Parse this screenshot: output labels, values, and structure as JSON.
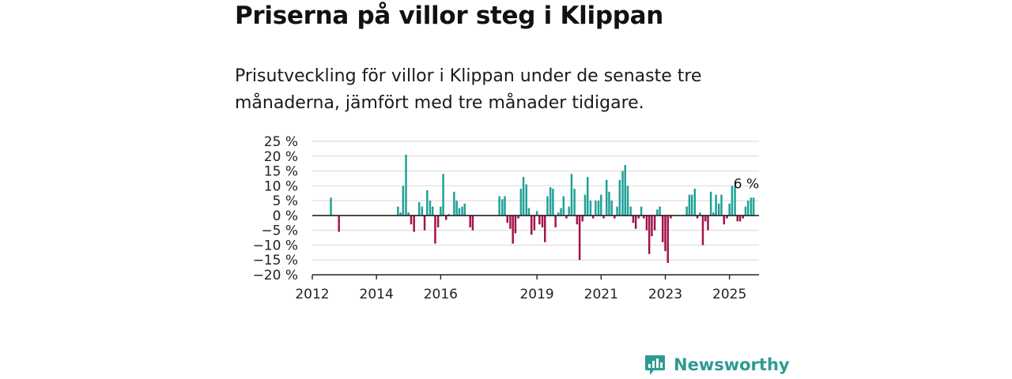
{
  "header": {
    "title": "Priserna på villor steg i Klippan",
    "subtitle": "Prisutveckling för villor i Klippan under de senaste tre månaderna, jämfört med tre månader tidigare."
  },
  "brand": {
    "name": "Newsworthy",
    "icon": "newsworthy-logo-icon",
    "color": "#2c9c92"
  },
  "colors": {
    "positive": "#1ea197",
    "negative": "#a3124a",
    "grid": "#dddddd",
    "axis": "#222222"
  },
  "chart_data": {
    "type": "bar",
    "title": "Priserna på villor steg i Klippan",
    "subtitle": "Prisutveckling för villor i Klippan under de senaste tre månaderna, jämfört med tre månader tidigare.",
    "xlabel": "",
    "ylabel": "",
    "ylim": [
      -20,
      25
    ],
    "xlim": [
      2012.0,
      2025.92
    ],
    "grid": true,
    "y_ticks": [
      25,
      20,
      15,
      10,
      5,
      0,
      -5,
      -10,
      -15,
      -20
    ],
    "y_tick_labels": [
      "25 %",
      "20 %",
      "15 %",
      "10 %",
      "5 %",
      "0 %",
      "−5 %",
      "−10 %",
      "−15 %",
      "−20 %"
    ],
    "x_ticks": [
      2012,
      2014,
      2016,
      2019,
      2021,
      2023,
      2025
    ],
    "x_tick_labels": [
      "2012",
      "2014",
      "2016",
      "2019",
      "2021",
      "2023",
      "2025"
    ],
    "annotation": {
      "x": 2025.5,
      "y": 6,
      "text": "6 %"
    },
    "bars": [
      {
        "x": 2012.58,
        "y": 6
      },
      {
        "x": 2012.83,
        "y": -5.5
      },
      {
        "x": 2014.67,
        "y": 3
      },
      {
        "x": 2014.75,
        "y": 1
      },
      {
        "x": 2014.83,
        "y": 10
      },
      {
        "x": 2014.92,
        "y": 20.5
      },
      {
        "x": 2015.0,
        "y": 1
      },
      {
        "x": 2015.08,
        "y": -3
      },
      {
        "x": 2015.17,
        "y": -5.5
      },
      {
        "x": 2015.33,
        "y": 4.5
      },
      {
        "x": 2015.42,
        "y": 3
      },
      {
        "x": 2015.5,
        "y": -5
      },
      {
        "x": 2015.58,
        "y": 8.5
      },
      {
        "x": 2015.67,
        "y": 5
      },
      {
        "x": 2015.75,
        "y": 3
      },
      {
        "x": 2015.83,
        "y": -9.5
      },
      {
        "x": 2015.92,
        "y": -4
      },
      {
        "x": 2016.0,
        "y": 3
      },
      {
        "x": 2016.08,
        "y": 14
      },
      {
        "x": 2016.17,
        "y": -1.5
      },
      {
        "x": 2016.25,
        "y": 0.5
      },
      {
        "x": 2016.42,
        "y": 8
      },
      {
        "x": 2016.5,
        "y": 5
      },
      {
        "x": 2016.58,
        "y": 2.5
      },
      {
        "x": 2016.67,
        "y": 3
      },
      {
        "x": 2016.75,
        "y": 4
      },
      {
        "x": 2016.92,
        "y": -4
      },
      {
        "x": 2017.0,
        "y": -5
      },
      {
        "x": 2017.83,
        "y": 6.5
      },
      {
        "x": 2017.92,
        "y": 5.5
      },
      {
        "x": 2018.0,
        "y": 6.5
      },
      {
        "x": 2018.08,
        "y": -2.5
      },
      {
        "x": 2018.17,
        "y": -4.5
      },
      {
        "x": 2018.25,
        "y": -9.5
      },
      {
        "x": 2018.33,
        "y": -6
      },
      {
        "x": 2018.42,
        "y": -1
      },
      {
        "x": 2018.5,
        "y": 9
      },
      {
        "x": 2018.58,
        "y": 13
      },
      {
        "x": 2018.67,
        "y": 10.5
      },
      {
        "x": 2018.75,
        "y": 2.5
      },
      {
        "x": 2018.83,
        "y": -6.5
      },
      {
        "x": 2018.92,
        "y": -5
      },
      {
        "x": 2019.0,
        "y": 1.5
      },
      {
        "x": 2019.08,
        "y": -3
      },
      {
        "x": 2019.17,
        "y": -4
      },
      {
        "x": 2019.25,
        "y": -9
      },
      {
        "x": 2019.33,
        "y": 6.5
      },
      {
        "x": 2019.42,
        "y": 9.5
      },
      {
        "x": 2019.5,
        "y": 9
      },
      {
        "x": 2019.58,
        "y": -4
      },
      {
        "x": 2019.67,
        "y": 1
      },
      {
        "x": 2019.75,
        "y": 2.5
      },
      {
        "x": 2019.83,
        "y": 6.5
      },
      {
        "x": 2019.92,
        "y": -1
      },
      {
        "x": 2020.0,
        "y": 3
      },
      {
        "x": 2020.08,
        "y": 14
      },
      {
        "x": 2020.17,
        "y": 9
      },
      {
        "x": 2020.25,
        "y": -3
      },
      {
        "x": 2020.33,
        "y": -15
      },
      {
        "x": 2020.42,
        "y": -2
      },
      {
        "x": 2020.5,
        "y": 7
      },
      {
        "x": 2020.58,
        "y": 13
      },
      {
        "x": 2020.67,
        "y": 5
      },
      {
        "x": 2020.75,
        "y": -1
      },
      {
        "x": 2020.83,
        "y": 5
      },
      {
        "x": 2020.92,
        "y": 5
      },
      {
        "x": 2021.0,
        "y": 7
      },
      {
        "x": 2021.08,
        "y": -1
      },
      {
        "x": 2021.17,
        "y": 12
      },
      {
        "x": 2021.25,
        "y": 8
      },
      {
        "x": 2021.33,
        "y": 5
      },
      {
        "x": 2021.42,
        "y": -1
      },
      {
        "x": 2021.5,
        "y": 3
      },
      {
        "x": 2021.58,
        "y": 12
      },
      {
        "x": 2021.67,
        "y": 15
      },
      {
        "x": 2021.75,
        "y": 17
      },
      {
        "x": 2021.83,
        "y": 10
      },
      {
        "x": 2021.92,
        "y": 3
      },
      {
        "x": 2022.0,
        "y": -2.5
      },
      {
        "x": 2022.08,
        "y": -4.5
      },
      {
        "x": 2022.17,
        "y": -1
      },
      {
        "x": 2022.25,
        "y": 3
      },
      {
        "x": 2022.33,
        "y": -1
      },
      {
        "x": 2022.42,
        "y": -5
      },
      {
        "x": 2022.5,
        "y": -13
      },
      {
        "x": 2022.58,
        "y": -7
      },
      {
        "x": 2022.67,
        "y": -5
      },
      {
        "x": 2022.75,
        "y": 2
      },
      {
        "x": 2022.83,
        "y": 3
      },
      {
        "x": 2022.92,
        "y": -9
      },
      {
        "x": 2023.0,
        "y": -12
      },
      {
        "x": 2023.08,
        "y": -16
      },
      {
        "x": 2023.17,
        "y": -1
      },
      {
        "x": 2023.67,
        "y": 3
      },
      {
        "x": 2023.75,
        "y": 7
      },
      {
        "x": 2023.83,
        "y": 7
      },
      {
        "x": 2023.92,
        "y": 9
      },
      {
        "x": 2024.0,
        "y": -1
      },
      {
        "x": 2024.08,
        "y": 1
      },
      {
        "x": 2024.17,
        "y": -10
      },
      {
        "x": 2024.25,
        "y": -2
      },
      {
        "x": 2024.33,
        "y": -5
      },
      {
        "x": 2024.42,
        "y": 8
      },
      {
        "x": 2024.5,
        "y": 1
      },
      {
        "x": 2024.58,
        "y": 7
      },
      {
        "x": 2024.67,
        "y": 4
      },
      {
        "x": 2024.75,
        "y": 7
      },
      {
        "x": 2024.83,
        "y": -3
      },
      {
        "x": 2024.92,
        "y": -1
      },
      {
        "x": 2025.0,
        "y": 4
      },
      {
        "x": 2025.08,
        "y": 10
      },
      {
        "x": 2025.17,
        "y": 10
      },
      {
        "x": 2025.25,
        "y": -2
      },
      {
        "x": 2025.33,
        "y": -2
      },
      {
        "x": 2025.42,
        "y": -1
      },
      {
        "x": 2025.5,
        "y": 3
      },
      {
        "x": 2025.58,
        "y": 5
      },
      {
        "x": 2025.67,
        "y": 6
      },
      {
        "x": 2025.75,
        "y": 6
      }
    ]
  }
}
